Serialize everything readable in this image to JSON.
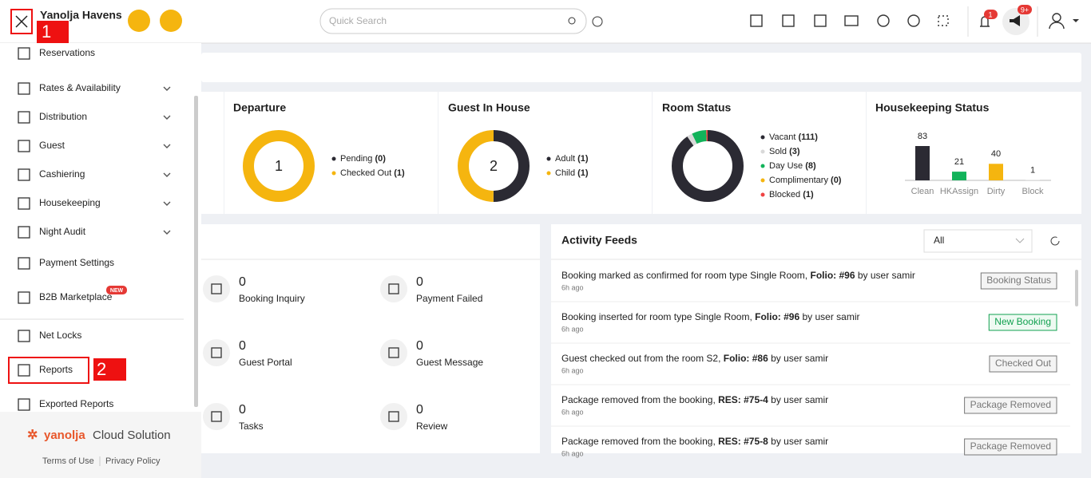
{
  "header": {
    "hotel": "Yanolja Havens",
    "search": "Quick Search",
    "notif_count": "1",
    "announce_count": "9+",
    "step": "1"
  },
  "sidebar": {
    "menu": [
      {
        "label": "Reservations",
        "expandable": false
      },
      {
        "label": "Rates & Availability",
        "expandable": true
      },
      {
        "label": "Distribution",
        "expandable": true
      },
      {
        "label": "Guest",
        "expandable": true
      },
      {
        "label": "Cashiering",
        "expandable": true
      },
      {
        "label": "Housekeeping",
        "expandable": true
      },
      {
        "label": "Night Audit",
        "expandable": true
      },
      {
        "label": "Payment Settings",
        "expandable": false
      },
      {
        "label": "B2B Marketplace",
        "expandable": false
      },
      {
        "label": "Net Locks",
        "expandable": false
      },
      {
        "label": "Reports",
        "expandable": false
      },
      {
        "label": "Exported Reports",
        "expandable": false
      }
    ],
    "new_badge": "NEW",
    "step": "2",
    "brand": [
      "yanolja",
      "Cloud Solution"
    ],
    "links": [
      "Terms of Use",
      "Privacy Policy"
    ]
  },
  "widgets": [
    {
      "title": "Departure",
      "center": 1,
      "items": [
        {
          "label": "Pending",
          "value": 0,
          "value_label": "(0)",
          "color": "#2b2a33"
        },
        {
          "label": "Checked Out",
          "value": 1,
          "value_label": "(1)",
          "color": "#f5b50f"
        }
      ]
    },
    {
      "title": "Guest In House",
      "center": 2,
      "items": [
        {
          "label": "Adult",
          "value": 1,
          "value_label": "(1)",
          "color": "#2b2a33"
        },
        {
          "label": "Child",
          "value": 1,
          "value_label": "(1)",
          "color": "#f5b50f"
        }
      ]
    },
    {
      "title": "Room Status",
      "items": [
        {
          "label": "Vacant",
          "value": 111,
          "value_label": "(111)",
          "color": "#2b2a33"
        },
        {
          "label": "Sold",
          "value": 3,
          "value_label": "(3)",
          "color": "#d9d9d9"
        },
        {
          "label": "Day Use",
          "value": 8,
          "value_label": "(8)",
          "color": "#12b35a"
        },
        {
          "label": "Complimentary",
          "value": 0,
          "value_label": "(0)",
          "color": "#f5b50f"
        },
        {
          "label": "Blocked",
          "value": 1,
          "value_label": "(1)",
          "color": "#ef4444"
        }
      ]
    }
  ],
  "housekeeping": {
    "title": "Housekeeping Status",
    "categories": [
      "Clean",
      "HKAssign",
      "Dirty",
      "Block"
    ],
    "values": [
      83,
      21,
      40,
      1
    ],
    "colors": [
      "#2b2a33",
      "#12b35a",
      "#f5b50f",
      "#d9d9d9"
    ]
  },
  "counters": [
    {
      "label": "Booking Inquiry",
      "value": 0
    },
    {
      "label": "Payment Failed",
      "value": 0
    },
    {
      "label": "Guest Portal",
      "value": 0
    },
    {
      "label": "Guest Message",
      "value": 0
    },
    {
      "label": "Tasks",
      "value": 0
    },
    {
      "label": "Review",
      "value": 0
    }
  ],
  "feed": {
    "title": "Activity Feeds",
    "filter": "All",
    "items": [
      {
        "parts": [
          {
            "text": "Booking marked as confirmed for room type Single Room, ",
            "bold": false
          },
          {
            "text": "Folio: #96",
            "bold": true
          },
          {
            "text": " by user samir",
            "bold": false
          }
        ],
        "time": "6h ago",
        "tag": "Booking Status",
        "tag_color": "#777"
      },
      {
        "parts": [
          {
            "text": "Booking inserted for room type Single Room, ",
            "bold": false
          },
          {
            "text": "Folio: #96",
            "bold": true
          },
          {
            "text": " by user samir",
            "bold": false
          }
        ],
        "time": "6h ago",
        "tag": "New Booking",
        "tag_color": "#12a150"
      },
      {
        "parts": [
          {
            "text": "Guest checked out from the room S2, ",
            "bold": false
          },
          {
            "text": "Folio: #86",
            "bold": true
          },
          {
            "text": " by user samir",
            "bold": false
          }
        ],
        "time": "6h ago",
        "tag": "Checked Out",
        "tag_color": "#777"
      },
      {
        "parts": [
          {
            "text": "Package removed from the booking, ",
            "bold": false
          },
          {
            "text": "RES: #75-4",
            "bold": true
          },
          {
            "text": " by user samir",
            "bold": false
          }
        ],
        "time": "6h ago",
        "tag": "Package Removed",
        "tag_color": "#777"
      },
      {
        "parts": [
          {
            "text": "Package removed from the booking, ",
            "bold": false
          },
          {
            "text": "RES: #75-8",
            "bold": true
          },
          {
            "text": " by user samir",
            "bold": false
          }
        ],
        "time": "6h ago",
        "tag": "Package Removed",
        "tag_color": "#777"
      }
    ]
  }
}
